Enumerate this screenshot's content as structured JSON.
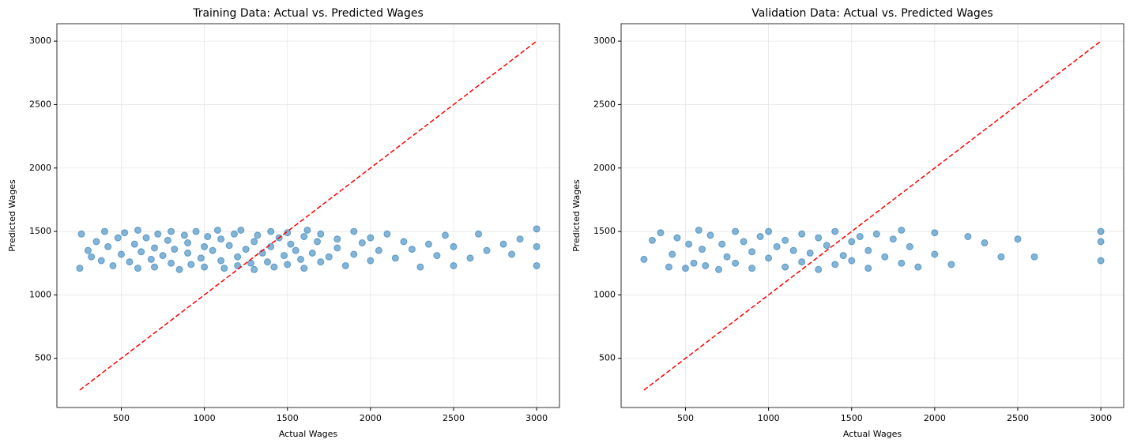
{
  "chart_data": [
    {
      "type": "scatter",
      "title": "Training Data: Actual vs. Predicted Wages",
      "xlabel": "Actual Wages",
      "ylabel": "Predicted Wages",
      "xlim": [
        112.5,
        3137.5
      ],
      "ylim": [
        112.5,
        3137.5
      ],
      "xticks": [
        500,
        1000,
        1500,
        2000,
        2500,
        3000
      ],
      "yticks": [
        500,
        1000,
        1500,
        2000,
        2500,
        3000
      ],
      "grid": true,
      "color": "#1f77b4",
      "x": [
        250,
        260,
        300,
        320,
        350,
        380,
        400,
        420,
        450,
        480,
        500,
        520,
        550,
        580,
        600,
        600,
        620,
        650,
        680,
        700,
        700,
        720,
        750,
        780,
        800,
        800,
        820,
        850,
        880,
        900,
        900,
        920,
        950,
        980,
        1000,
        1000,
        1020,
        1050,
        1080,
        1100,
        1100,
        1120,
        1150,
        1180,
        1200,
        1200,
        1220,
        1250,
        1280,
        1300,
        1300,
        1320,
        1350,
        1380,
        1400,
        1400,
        1420,
        1450,
        1480,
        1500,
        1500,
        1520,
        1550,
        1580,
        1600,
        1600,
        1620,
        1650,
        1680,
        1700,
        1700,
        1750,
        1800,
        1800,
        1850,
        1900,
        1900,
        1950,
        2000,
        2000,
        2050,
        2100,
        2150,
        2200,
        2250,
        2300,
        2350,
        2400,
        2450,
        2500,
        2500,
        2600,
        2650,
        2700,
        2800,
        2850,
        2900,
        3000,
        3000,
        3000
      ],
      "y": [
        1210,
        1480,
        1350,
        1300,
        1420,
        1270,
        1500,
        1380,
        1230,
        1450,
        1320,
        1490,
        1260,
        1400,
        1210,
        1510,
        1340,
        1450,
        1280,
        1370,
        1220,
        1480,
        1310,
        1430,
        1250,
        1500,
        1360,
        1200,
        1470,
        1330,
        1410,
        1240,
        1500,
        1290,
        1380,
        1220,
        1460,
        1350,
        1510,
        1270,
        1440,
        1210,
        1390,
        1480,
        1300,
        1230,
        1510,
        1360,
        1250,
        1420,
        1200,
        1470,
        1330,
        1260,
        1500,
        1380,
        1220,
        1450,
        1310,
        1490,
        1240,
        1400,
        1350,
        1280,
        1460,
        1210,
        1510,
        1330,
        1420,
        1260,
        1480,
        1300,
        1370,
        1440,
        1230,
        1500,
        1320,
        1410,
        1270,
        1450,
        1350,
        1480,
        1290,
        1420,
        1360,
        1220,
        1400,
        1310,
        1470,
        1380,
        1230,
        1290,
        1480,
        1350,
        1400,
        1320,
        1440,
        1520,
        1380,
        1230
      ],
      "ref_line": {
        "x": [
          250,
          3000
        ],
        "y": [
          250,
          3000
        ],
        "color": "#ff0000"
      }
    },
    {
      "type": "scatter",
      "title": "Validation Data: Actual vs. Predicted Wages",
      "xlabel": "Actual Wages",
      "ylabel": "Predicted Wages",
      "xlim": [
        112.5,
        3137.5
      ],
      "ylim": [
        112.5,
        3137.5
      ],
      "xticks": [
        500,
        1000,
        1500,
        2000,
        2500,
        3000
      ],
      "yticks": [
        500,
        1000,
        1500,
        2000,
        2500,
        3000
      ],
      "grid": true,
      "color": "#1f77b4",
      "x": [
        250,
        300,
        350,
        400,
        420,
        450,
        500,
        520,
        550,
        580,
        600,
        620,
        650,
        700,
        720,
        750,
        800,
        800,
        850,
        900,
        900,
        950,
        1000,
        1000,
        1050,
        1100,
        1100,
        1150,
        1200,
        1200,
        1250,
        1300,
        1300,
        1350,
        1400,
        1400,
        1450,
        1500,
        1500,
        1550,
        1600,
        1600,
        1650,
        1700,
        1750,
        1800,
        1800,
        1850,
        1900,
        2000,
        2000,
        2100,
        2200,
        2300,
        2400,
        2500,
        2600,
        3000,
        3000,
        3000
      ],
      "y": [
        1280,
        1430,
        1490,
        1220,
        1320,
        1450,
        1210,
        1400,
        1250,
        1510,
        1360,
        1230,
        1470,
        1200,
        1400,
        1300,
        1500,
        1250,
        1420,
        1340,
        1210,
        1460,
        1290,
        1500,
        1380,
        1220,
        1430,
        1350,
        1260,
        1480,
        1330,
        1200,
        1450,
        1390,
        1240,
        1500,
        1310,
        1420,
        1270,
        1460,
        1350,
        1210,
        1480,
        1300,
        1440,
        1250,
        1510,
        1380,
        1220,
        1490,
        1320,
        1240,
        1460,
        1410,
        1300,
        1440,
        1300,
        1500,
        1270,
        1420
      ],
      "ref_line": {
        "x": [
          250,
          3000
        ],
        "y": [
          250,
          3000
        ],
        "color": "#ff0000"
      }
    }
  ]
}
